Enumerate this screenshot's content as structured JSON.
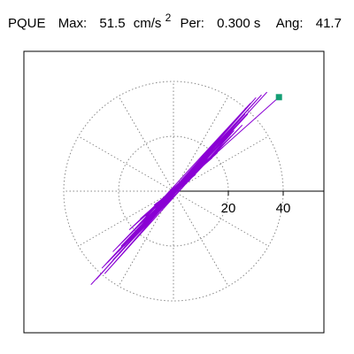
{
  "header": {
    "station": "PQUE",
    "max_label": "Max:",
    "max_value": "51.5",
    "max_unit": "cm/s",
    "max_unit_exp": "2",
    "per_label": "Per:",
    "per_value": "0.300 s",
    "ang_label": "Ang:",
    "ang_value": "41.7"
  },
  "chart_data": {
    "type": "line",
    "axis": {
      "tick_values": [
        20,
        40
      ],
      "tick_labels": [
        "20",
        "40"
      ],
      "range": [
        0,
        51.5
      ]
    },
    "polar_grid": {
      "radii": [
        20,
        40
      ],
      "spoke_angles_deg": [
        0,
        30,
        60,
        90,
        120,
        150,
        180,
        210,
        240,
        270,
        300,
        330
      ],
      "style": "dotted"
    },
    "peak": {
      "magnitude": 51.5,
      "angle_deg": 41.7
    },
    "colors": {
      "trace": "#8a00d4",
      "marker": "#149e74",
      "grid": "#888888",
      "axis": "#000000"
    },
    "series": [
      {
        "x": [
          0,
          1.5,
          -2,
          3,
          -3,
          2,
          -1.5,
          4,
          -4,
          2.5,
          -2,
          5,
          -5,
          3,
          -3,
          8,
          -7,
          6,
          -9,
          10,
          -12,
          14,
          -10,
          18,
          -16,
          20,
          -22,
          24,
          -20,
          26,
          -25,
          22,
          -18,
          28,
          -24,
          21,
          -15,
          30,
          -28,
          32,
          -26,
          25,
          -22,
          34,
          -30,
          27,
          -19,
          15,
          -12,
          20,
          -18,
          24,
          -20,
          18,
          -14,
          12,
          -10,
          16,
          -9,
          8,
          -6,
          10,
          -12,
          14,
          -8,
          6,
          -5,
          4,
          -3,
          2,
          -1,
          0
        ],
        "y": [
          0,
          1,
          -1,
          2,
          -2,
          1.5,
          -1,
          3,
          -3,
          2,
          -1.5,
          4,
          -4,
          2,
          -3,
          6,
          -5,
          4,
          -8,
          9,
          -10,
          13,
          -9,
          16,
          -14,
          20,
          -22,
          26,
          -20,
          28,
          -30,
          22,
          -18,
          32,
          -26,
          20,
          -16,
          34,
          -32,
          35,
          -28,
          24,
          -25,
          36,
          -34,
          28,
          -20,
          16,
          -14,
          22,
          -20,
          26,
          -22,
          18,
          -16,
          12,
          -10,
          14,
          -8,
          7,
          -6,
          9,
          -10,
          12,
          -7,
          5,
          -4,
          3,
          -2,
          1,
          -1,
          0
        ]
      }
    ]
  }
}
